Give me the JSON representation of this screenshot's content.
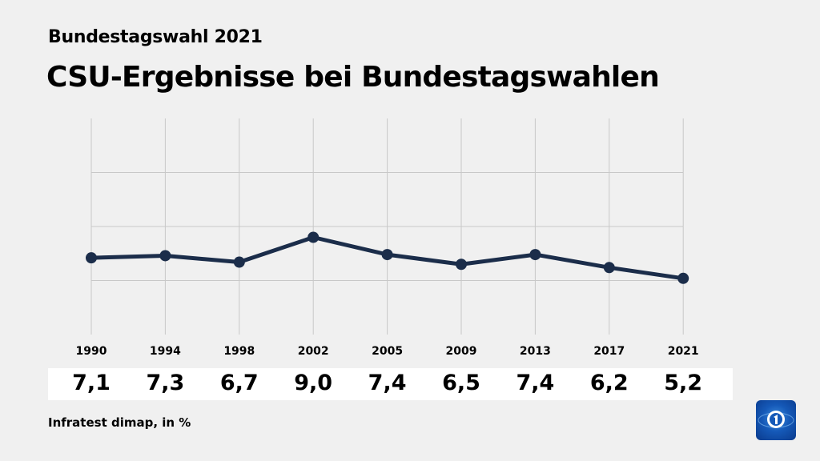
{
  "header": {
    "kicker": "Bundestagswahl 2021",
    "title": "CSU-Ergebnisse bei Bundestagswahlen"
  },
  "source": "Infratest dimap, in %",
  "colors": {
    "line": "#1b2d4a",
    "grid": "#c8c8c8",
    "background": "#f0f0f0"
  },
  "logo": {
    "name": "tagesschau-logo",
    "text": "1"
  },
  "chart_data": {
    "type": "line",
    "title": "CSU-Ergebnisse bei Bundestagswahlen",
    "categories": [
      "1990",
      "1994",
      "1998",
      "2002",
      "2005",
      "2009",
      "2013",
      "2017",
      "2021"
    ],
    "series": [
      {
        "name": "CSU",
        "values": [
          7.1,
          7.3,
          6.7,
          9.0,
          7.4,
          6.5,
          7.4,
          6.2,
          5.2
        ]
      }
    ],
    "value_labels": [
      "7,1",
      "7,3",
      "6,7",
      "9,0",
      "7,4",
      "6,5",
      "7,4",
      "6,2",
      "5,2"
    ],
    "ylim": [
      0,
      20
    ],
    "grid_y": [
      5,
      10,
      15
    ],
    "grid": true,
    "xlabel": "",
    "ylabel": ""
  }
}
